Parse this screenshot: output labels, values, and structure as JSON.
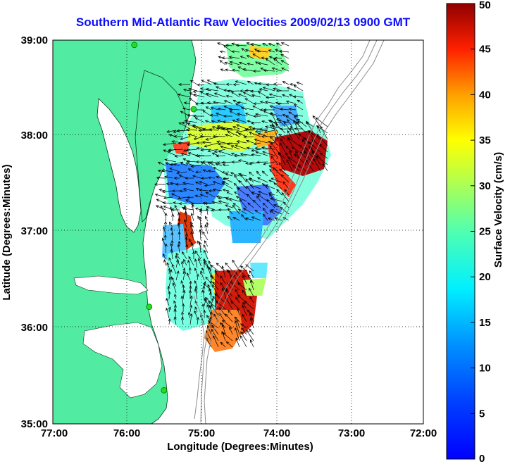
{
  "title": "Southern Mid-Atlantic Raw Velocities 2009/02/13 0900 GMT",
  "map": {
    "x_axis_label": "Longitude (Degrees:Minutes)",
    "y_axis_label": "Latitude (Degrees:Minutes)",
    "lon_ticks": [
      "77:00",
      "76:00",
      "75:00",
      "74:00",
      "73:00",
      "72:00"
    ],
    "lat_ticks": [
      "39:00",
      "38:00",
      "37:00",
      "36:00",
      "35:00"
    ],
    "lon_range": [
      -77,
      -72
    ],
    "lat_range": [
      35,
      39
    ],
    "grid": "dotted",
    "colors": {
      "land": "#52eba2",
      "water": "#ffffff",
      "bathymetry_contours": "#8c8c8c",
      "vector_arrows": "#000000",
      "station_markers": "#22dd22",
      "title": "#0b0bff"
    }
  },
  "colorbar": {
    "label": "Surface Velocity (cm/s)",
    "ticks": [
      "50",
      "45",
      "40",
      "35",
      "30",
      "25",
      "20",
      "15",
      "10",
      "5",
      "0"
    ],
    "range": [
      0,
      50
    ],
    "colormap": "jet"
  },
  "stations": [
    {
      "lon": -75.9,
      "lat": 38.95
    },
    {
      "lon": -75.1,
      "lat": 38.28
    },
    {
      "lon": -75.7,
      "lat": 36.22
    },
    {
      "lon": -75.5,
      "lat": 35.35
    }
  ]
}
